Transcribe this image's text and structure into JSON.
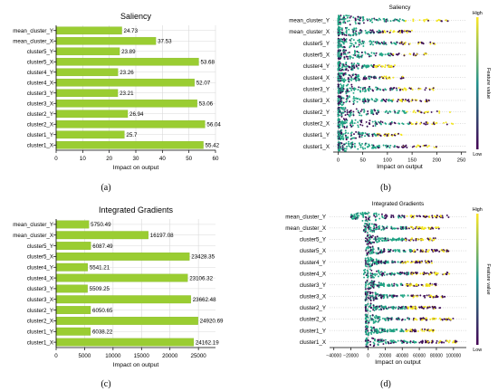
{
  "colors": {
    "bar": "#9acd32",
    "bar_stroke": "#7fb21e",
    "beeswarm_high": "#f2e51c",
    "beeswarm_mid": "#21a585",
    "beeswarm_low": "#3b0a55",
    "colorbar_top": "#fde725",
    "colorbar_mid": "#21918c",
    "colorbar_bottom": "#440154",
    "grid": "#d9d9d9",
    "axis": "#000000"
  },
  "panel_labels": [
    "(a)",
    "(b)",
    "(c)",
    "(d)"
  ],
  "colorbar": {
    "high": "High",
    "low": "Low",
    "title": "Feature value"
  },
  "chart_data": [
    {
      "type": "bar",
      "orientation": "horizontal",
      "title": "Saliency",
      "xlabel": "Impact on output",
      "ylabel": "",
      "xlim": [
        0,
        60
      ],
      "xticks": [
        0,
        10,
        20,
        30,
        40,
        50,
        60
      ],
      "grid": true,
      "categories": [
        "mean_cluster_Y",
        "mean_cluster_X",
        "cluster5_Y",
        "cluster5_X",
        "cluster4_Y",
        "cluster4_X",
        "cluster3_Y",
        "cluster3_X",
        "cluster2_Y",
        "cluster2_X",
        "cluster1_Y",
        "cluster1_X"
      ],
      "values": [
        24.73,
        37.53,
        23.89,
        53.68,
        23.26,
        52.07,
        23.21,
        53.06,
        26.94,
        56.04,
        25.7,
        55.42
      ],
      "data_labels": [
        "24.73",
        "37.53",
        "23.89",
        "53.68",
        "23.26",
        "52.07",
        "23.21",
        "53.06",
        "26.94",
        "56.04",
        "25.7",
        "55.42"
      ]
    },
    {
      "type": "scatter",
      "subtype": "beeswarm",
      "title": "Saliency",
      "xlabel": "Impact on output",
      "ylabel": "",
      "xlim": [
        -10,
        260
      ],
      "xticks": [
        0,
        50,
        100,
        150,
        200,
        250
      ],
      "categories": [
        "mean_cluster_Y",
        "mean_cluster_X",
        "cluster5_Y",
        "cluster5_X",
        "cluster4_Y",
        "cluster4_X",
        "cluster3_Y",
        "cluster3_X",
        "cluster2_Y",
        "cluster2_X",
        "cluster1_Y",
        "cluster1_X"
      ],
      "ranges": [
        [
          0,
          225
        ],
        [
          0,
          150
        ],
        [
          0,
          200
        ],
        [
          0,
          180
        ],
        [
          0,
          115
        ],
        [
          0,
          140
        ],
        [
          0,
          200
        ],
        [
          0,
          185
        ],
        [
          0,
          230
        ],
        [
          0,
          240
        ],
        [
          0,
          130
        ],
        [
          0,
          205
        ]
      ],
      "colorbar_label": "Feature value"
    },
    {
      "type": "bar",
      "orientation": "horizontal",
      "title": "Integrated Gradients",
      "xlabel": "Impact on output",
      "ylabel": "",
      "xlim": [
        0,
        28000
      ],
      "xticks": [
        0,
        5000,
        10000,
        15000,
        20000,
        25000
      ],
      "grid": true,
      "categories": [
        "mean_cluster_Y",
        "mean_cluster_X",
        "cluster5_Y",
        "cluster5_X",
        "cluster4_Y",
        "cluster4_X",
        "cluster3_Y",
        "cluster3_X",
        "cluster2_Y",
        "cluster2_X",
        "cluster1_Y",
        "cluster1_X"
      ],
      "values": [
        5750.49,
        16197.08,
        6087.49,
        23428.35,
        5541.21,
        23106.32,
        5509.25,
        23662.48,
        6050.65,
        24920.69,
        6038.22,
        24162.19
      ],
      "data_labels": [
        "5750.49",
        "16197.08",
        "6087.49",
        "23428.35",
        "5541.21",
        "23106.32",
        "5509.25",
        "23662.48",
        "6050.65",
        "24920.69",
        "6038.22",
        "24162.19"
      ]
    },
    {
      "type": "scatter",
      "subtype": "beeswarm",
      "title": "Integrated Gradients",
      "xlabel": "Impact on output",
      "ylabel": "",
      "xlim": [
        -45000,
        115000
      ],
      "xticks": [
        -40000,
        -20000,
        0,
        20000,
        40000,
        60000,
        80000,
        100000
      ],
      "xticklabels": [
        "−40000",
        "−20000",
        "0",
        "20000",
        "40000",
        "60000",
        "80000",
        "100000"
      ],
      "categories": [
        "mean_cluster_Y",
        "mean_cluster_X",
        "cluster5_Y",
        "cluster5_X",
        "cluster4_Y",
        "cluster4_X",
        "cluster3_Y",
        "cluster3_X",
        "cluster2_Y",
        "cluster2_X",
        "cluster1_Y",
        "cluster1_X"
      ],
      "ranges": [
        [
          -20000,
          95000
        ],
        [
          -5000,
          85000
        ],
        [
          -3000,
          80000
        ],
        [
          -3000,
          95000
        ],
        [
          -3000,
          75000
        ],
        [
          -5000,
          95000
        ],
        [
          -3000,
          80000
        ],
        [
          -3000,
          90000
        ],
        [
          -3000,
          85000
        ],
        [
          -3000,
          100000
        ],
        [
          -3000,
          80000
        ],
        [
          -3000,
          105000
        ]
      ],
      "colorbar_label": "Feature value"
    }
  ]
}
